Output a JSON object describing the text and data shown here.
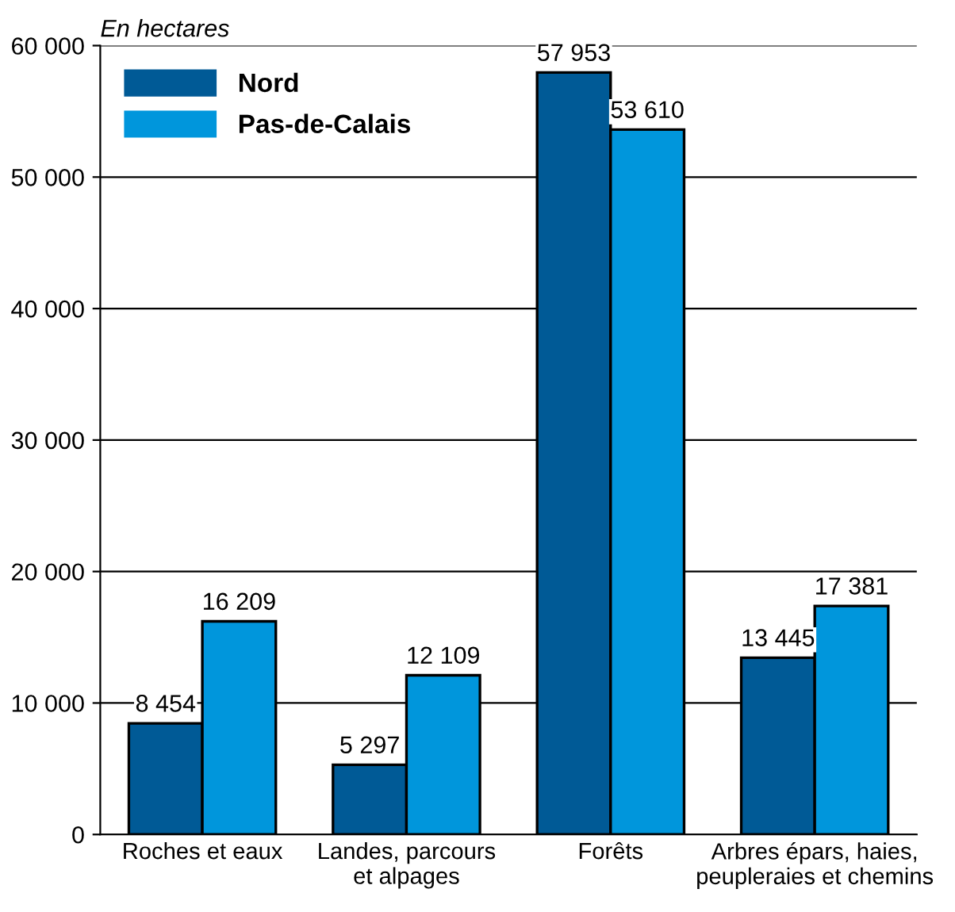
{
  "chart_data": {
    "type": "bar",
    "ylabel": "En hectares",
    "categories": [
      "Roches et eaux",
      "Landes, parcours\net alpages",
      "Forêts",
      "Arbres épars, haies,\npeupleraies et chemins"
    ],
    "series": [
      {
        "name": "Nord",
        "color": "#005a96",
        "values": [
          8454,
          5297,
          57953,
          13445
        ],
        "value_labels": [
          "8 454",
          "5 297",
          "57 953",
          "13 445"
        ]
      },
      {
        "name": "Pas-de-Calais",
        "color": "#0096dc",
        "values": [
          16209,
          12109,
          53610,
          17381
        ],
        "value_labels": [
          "16 209",
          "12 109",
          "53 610",
          "17 381"
        ]
      }
    ],
    "ylim": [
      0,
      60000
    ],
    "yticks": [
      {
        "value": 0,
        "label": "0"
      },
      {
        "value": 10000,
        "label": "10 000"
      },
      {
        "value": 20000,
        "label": "20 000"
      },
      {
        "value": 30000,
        "label": "30 000"
      },
      {
        "value": 40000,
        "label": "40 000"
      },
      {
        "value": 50000,
        "label": "50 000"
      },
      {
        "value": 60000,
        "label": "60 000"
      }
    ],
    "grid": "y",
    "legend": "top left"
  }
}
